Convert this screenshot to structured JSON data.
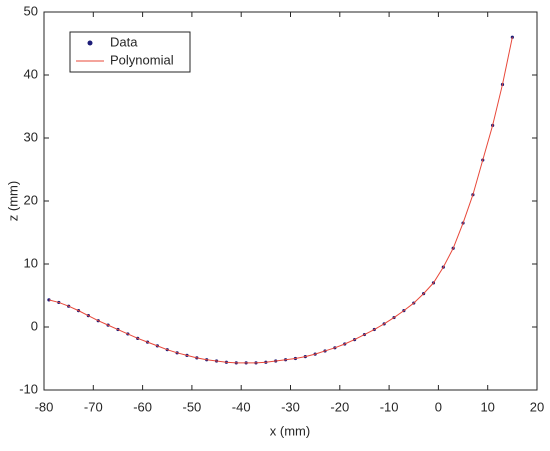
{
  "chart_data": {
    "type": "line",
    "xlabel": "x (mm)",
    "ylabel": "z (mm)",
    "x": [
      -79,
      -77,
      -75,
      -73,
      -71,
      -69,
      -67,
      -65,
      -63,
      -61,
      -59,
      -57,
      -55,
      -53,
      -51,
      -49,
      -47,
      -45,
      -43,
      -41,
      -39,
      -37,
      -35,
      -33,
      -31,
      -29,
      -27,
      -25,
      -23,
      -21,
      -19,
      -17,
      -15,
      -13,
      -11,
      -9,
      -7,
      -5,
      -3,
      -1,
      1,
      3,
      5,
      7,
      9,
      11,
      13,
      15
    ],
    "series": [
      {
        "name": "Data",
        "mark": "dot",
        "color": "#1c1c78",
        "values": [
          4.3,
          3.9,
          3.3,
          2.6,
          1.8,
          1.0,
          0.3,
          -0.4,
          -1.1,
          -1.8,
          -2.4,
          -3.0,
          -3.6,
          -4.1,
          -4.5,
          -4.9,
          -5.2,
          -5.4,
          -5.6,
          -5.7,
          -5.7,
          -5.7,
          -5.6,
          -5.4,
          -5.2,
          -5.0,
          -4.7,
          -4.3,
          -3.8,
          -3.3,
          -2.7,
          -2.0,
          -1.2,
          -0.4,
          0.5,
          1.5,
          2.6,
          3.8,
          5.3,
          7.0,
          9.5,
          12.5,
          16.5,
          21.0,
          26.5,
          32.0,
          38.5,
          46.0
        ]
      },
      {
        "name": "Polynomial",
        "mark": "line",
        "color": "#e8483a",
        "values": [
          4.3,
          3.9,
          3.3,
          2.6,
          1.8,
          1.0,
          0.3,
          -0.4,
          -1.1,
          -1.8,
          -2.4,
          -3.0,
          -3.6,
          -4.1,
          -4.5,
          -4.9,
          -5.2,
          -5.4,
          -5.6,
          -5.7,
          -5.7,
          -5.7,
          -5.6,
          -5.4,
          -5.2,
          -5.0,
          -4.7,
          -4.3,
          -3.8,
          -3.3,
          -2.7,
          -2.0,
          -1.2,
          -0.4,
          0.5,
          1.5,
          2.6,
          3.8,
          5.3,
          7.0,
          9.5,
          12.5,
          16.5,
          21.0,
          26.5,
          32.0,
          38.5,
          46.0
        ]
      }
    ],
    "xlim": [
      -80,
      20
    ],
    "xticks": [
      -80,
      -70,
      -60,
      -50,
      -40,
      -30,
      -20,
      -10,
      0,
      10,
      20
    ],
    "ylim": [
      -10,
      50
    ],
    "yticks": [
      -10,
      0,
      10,
      20,
      30,
      40,
      50
    ],
    "legend": "upper-left"
  }
}
